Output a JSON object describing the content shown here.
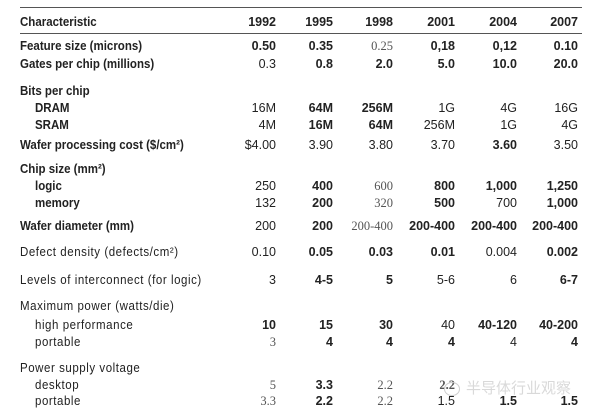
{
  "header": {
    "characteristic": "Characteristic",
    "years": [
      "1992",
      "1995",
      "1998",
      "2001",
      "2004",
      "2007"
    ]
  },
  "rows": [
    {
      "label": "Feature size (microns)",
      "values": [
        "0.50",
        "0.35",
        "0.25",
        "0,18",
        "0,12",
        "0.10"
      ]
    },
    {
      "label": "Gates per chip (millions)",
      "values": [
        "0.3",
        "0.8",
        "2.0",
        "5.0",
        "10.0",
        "20.0"
      ]
    },
    {
      "label": "Bits per chip",
      "values": []
    },
    {
      "label": "DRAM",
      "values": [
        "16M",
        "64M",
        "256M",
        "1G",
        "4G",
        "16G"
      ]
    },
    {
      "label": "SRAM",
      "values": [
        "4M",
        "16M",
        "64M",
        "256M",
        "1G",
        "4G"
      ]
    },
    {
      "label": "Wafer processing cost ($/cm²)",
      "values": [
        "$4.00",
        "3.90",
        "3.80",
        "3.70",
        "3.60",
        "3.50"
      ]
    },
    {
      "label": "Chip size (mm²)",
      "values": []
    },
    {
      "label": "logic",
      "values": [
        "250",
        "400",
        "600",
        "800",
        "1,000",
        "1,250"
      ]
    },
    {
      "label": "memory",
      "values": [
        "132",
        "200",
        "320",
        "500",
        "700",
        "1,000"
      ]
    },
    {
      "label": "Wafer diameter (mm)",
      "values": [
        "200",
        "200",
        "200-400",
        "200-400",
        "200-400",
        "200-400"
      ]
    },
    {
      "label": "Defect density (defects/cm²)",
      "values": [
        "0.10",
        "0.05",
        "0.03",
        "0.01",
        "0.004",
        "0.002"
      ]
    },
    {
      "label": "Levels of interconnect (for logic)",
      "values": [
        "3",
        "4-5",
        "5",
        "5-6",
        "6",
        "6-7"
      ]
    },
    {
      "label": "Maximum power (watts/die)",
      "values": []
    },
    {
      "label": "high performance",
      "values": [
        "10",
        "15",
        "30",
        "40",
        "40-120",
        "40-200"
      ]
    },
    {
      "label": "portable",
      "values": [
        "3",
        "4",
        "4",
        "4",
        "4",
        "4"
      ]
    },
    {
      "label": "Power supply voltage",
      "values": []
    },
    {
      "label": "desktop",
      "values": [
        "5",
        "3.3",
        "2.2",
        "2.2",
        "",
        ""
      ]
    },
    {
      "label": "portable",
      "values": [
        "3.3",
        "2.2",
        "2.2",
        "1.5",
        "1.5",
        "1.5"
      ]
    }
  ],
  "watermark": "半导体行业观察"
}
